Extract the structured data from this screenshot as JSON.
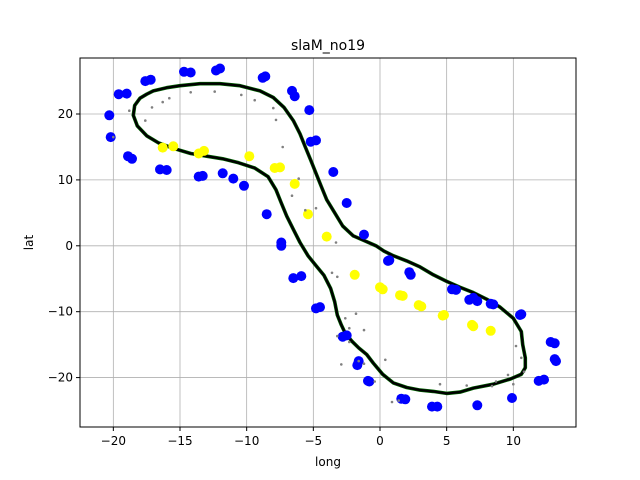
{
  "chart_data": {
    "type": "scatter",
    "title": "slaM_no19",
    "xlabel": "long",
    "ylabel": "lat",
    "xlim": [
      -22.5,
      14.7
    ],
    "ylim": [
      -27.5,
      28.5
    ],
    "xticks": [
      -20,
      -15,
      -10,
      -5,
      0,
      5,
      10
    ],
    "yticks": [
      -20,
      -10,
      0,
      10,
      20
    ],
    "grid": true,
    "legend": "none",
    "colors": {
      "blue": "#0000ff",
      "yellow": "#ffff00",
      "gray": "#808080",
      "track": "#000000",
      "track_edge": "#006400",
      "grid": "#b0b0b0"
    },
    "series": [
      {
        "color": "blue",
        "marker": "circle",
        "points": [
          [
            -20.3,
            19.8
          ],
          [
            -20.2,
            16.5
          ],
          [
            -19.6,
            23.0
          ],
          [
            -19.0,
            23.1
          ],
          [
            -18.9,
            13.6
          ],
          [
            -18.6,
            13.2
          ],
          [
            -17.6,
            25.0
          ],
          [
            -17.2,
            25.2
          ],
          [
            -16.5,
            11.6
          ],
          [
            -16.0,
            11.5
          ],
          [
            -14.7,
            26.4
          ],
          [
            -14.2,
            26.3
          ],
          [
            -13.6,
            10.5
          ],
          [
            -13.3,
            10.6
          ],
          [
            -12.3,
            26.6
          ],
          [
            -12.0,
            26.9
          ],
          [
            -11.8,
            11.0
          ],
          [
            -11.0,
            10.2
          ],
          [
            -10.2,
            9.1
          ],
          [
            -8.8,
            25.5
          ],
          [
            -8.6,
            25.7
          ],
          [
            -8.5,
            4.8
          ],
          [
            -7.4,
            0.5
          ],
          [
            -7.4,
            0.0
          ],
          [
            -6.6,
            23.5
          ],
          [
            -6.4,
            22.7
          ],
          [
            -6.5,
            -4.9
          ],
          [
            -5.9,
            -4.6
          ],
          [
            -5.3,
            20.6
          ],
          [
            -5.2,
            15.8
          ],
          [
            -4.8,
            16.0
          ],
          [
            -4.8,
            -9.5
          ],
          [
            -4.5,
            -9.3
          ],
          [
            -3.5,
            11.2
          ],
          [
            -2.8,
            -13.8
          ],
          [
            -2.5,
            -13.6
          ],
          [
            -2.5,
            6.5
          ],
          [
            -1.7,
            -18.1
          ],
          [
            -1.6,
            -17.5
          ],
          [
            -1.2,
            1.7
          ],
          [
            -0.9,
            -20.5
          ],
          [
            -0.8,
            -20.6
          ],
          [
            0.6,
            -2.3
          ],
          [
            0.7,
            -2.2
          ],
          [
            1.6,
            -23.2
          ],
          [
            1.9,
            -23.3
          ],
          [
            2.2,
            -4.0
          ],
          [
            2.3,
            -4.4
          ],
          [
            3.9,
            -24.4
          ],
          [
            4.3,
            -24.4
          ],
          [
            5.4,
            -6.6
          ],
          [
            5.7,
            -6.7
          ],
          [
            6.7,
            -8.2
          ],
          [
            7.0,
            -7.9
          ],
          [
            7.3,
            -8.4
          ],
          [
            7.3,
            -24.2
          ],
          [
            8.3,
            -8.8
          ],
          [
            8.5,
            -8.9
          ],
          [
            9.9,
            -23.1
          ],
          [
            10.5,
            -10.5
          ],
          [
            10.6,
            -10.4
          ],
          [
            11.9,
            -20.5
          ],
          [
            12.3,
            -20.3
          ],
          [
            12.8,
            -14.6
          ],
          [
            13.1,
            -14.8
          ],
          [
            13.1,
            -17.2
          ],
          [
            13.2,
            -17.5
          ]
        ]
      },
      {
        "color": "yellow",
        "marker": "circle",
        "points": [
          [
            -16.3,
            14.9
          ],
          [
            -15.5,
            15.1
          ],
          [
            -13.6,
            14.0
          ],
          [
            -13.2,
            14.4
          ],
          [
            -9.8,
            13.6
          ],
          [
            -7.9,
            11.8
          ],
          [
            -7.5,
            11.9
          ],
          [
            -6.4,
            9.4
          ],
          [
            -5.4,
            4.8
          ],
          [
            -4.0,
            1.4
          ],
          [
            -1.9,
            -4.4
          ],
          [
            0.0,
            -6.3
          ],
          [
            0.2,
            -6.6
          ],
          [
            1.5,
            -7.5
          ],
          [
            1.7,
            -7.6
          ],
          [
            2.9,
            -9.0
          ],
          [
            3.1,
            -9.2
          ],
          [
            4.7,
            -10.6
          ],
          [
            4.8,
            -10.5
          ],
          [
            6.9,
            -12.0
          ],
          [
            7.0,
            -12.2
          ],
          [
            8.3,
            -12.9
          ]
        ]
      },
      {
        "color": "gray",
        "marker": "dot",
        "points": [
          [
            -20.0,
            16.5
          ],
          [
            -18.8,
            20.5
          ],
          [
            -17.6,
            19.0
          ],
          [
            -17.1,
            21.0
          ],
          [
            -16.3,
            21.8
          ],
          [
            -15.8,
            22.4
          ],
          [
            -14.2,
            23.3
          ],
          [
            -12.4,
            23.4
          ],
          [
            -10.4,
            22.9
          ],
          [
            -9.4,
            22.1
          ],
          [
            -8.0,
            20.9
          ],
          [
            -7.8,
            19.1
          ],
          [
            -7.3,
            15.0
          ],
          [
            -6.1,
            10.2
          ],
          [
            -6.6,
            7.6
          ],
          [
            -5.6,
            5.4
          ],
          [
            -4.8,
            5.7
          ],
          [
            -3.3,
            0.5
          ],
          [
            -3.6,
            -4.1
          ],
          [
            -3.2,
            -4.7
          ],
          [
            -1.8,
            -10.3
          ],
          [
            -2.6,
            -11.0
          ],
          [
            -2.3,
            -12.5
          ],
          [
            -1.2,
            -12.8
          ],
          [
            -3.2,
            -13.7
          ],
          [
            -2.3,
            -14.6
          ],
          [
            -2.9,
            -18.0
          ],
          [
            -1.6,
            -17.5
          ],
          [
            -1.2,
            -17.9
          ],
          [
            -0.4,
            -20.6
          ],
          [
            0.4,
            -17.3
          ],
          [
            0.9,
            -23.7
          ],
          [
            1.4,
            -23.5
          ],
          [
            4.5,
            -21.0
          ],
          [
            6.5,
            -21.2
          ],
          [
            8.4,
            -21.3
          ],
          [
            8.7,
            -20.6
          ],
          [
            9.6,
            -19.6
          ],
          [
            10.2,
            -15.2
          ],
          [
            10.6,
            -17.0
          ],
          [
            10.8,
            -19.1
          ],
          [
            10.0,
            -21.0
          ]
        ]
      }
    ],
    "track": {
      "color": "track",
      "closed": true,
      "points": [
        [
          -17.5,
          23.0
        ],
        [
          -17.0,
          23.5
        ],
        [
          -16.0,
          24.0
        ],
        [
          -15.0,
          24.3
        ],
        [
          -13.5,
          24.6
        ],
        [
          -12.0,
          24.6
        ],
        [
          -10.5,
          24.3
        ],
        [
          -9.0,
          23.5
        ],
        [
          -8.0,
          22.5
        ],
        [
          -7.2,
          21.0
        ],
        [
          -6.5,
          19.0
        ],
        [
          -6.0,
          17.0
        ],
        [
          -5.6,
          15.0
        ],
        [
          -5.2,
          13.0
        ],
        [
          -4.8,
          11.0
        ],
        [
          -4.4,
          9.0
        ],
        [
          -4.0,
          7.0
        ],
        [
          -3.4,
          5.0
        ],
        [
          -2.8,
          3.0
        ],
        [
          -2.0,
          1.5
        ],
        [
          -1.2,
          0.8
        ],
        [
          -0.3,
          0.0
        ],
        [
          0.3,
          -0.8
        ],
        [
          1.0,
          -1.5
        ],
        [
          2.0,
          -2.3
        ],
        [
          3.0,
          -3.2
        ],
        [
          4.0,
          -4.4
        ],
        [
          5.0,
          -5.4
        ],
        [
          6.0,
          -6.3
        ],
        [
          7.0,
          -7.1
        ],
        [
          8.0,
          -8.1
        ],
        [
          9.0,
          -9.3
        ],
        [
          10.0,
          -11.0
        ],
        [
          10.6,
          -13.0
        ],
        [
          10.7,
          -15.0
        ],
        [
          10.9,
          -17.0
        ],
        [
          10.9,
          -18.5
        ],
        [
          10.6,
          -19.5
        ],
        [
          9.8,
          -20.2
        ],
        [
          8.5,
          -21.0
        ],
        [
          7.0,
          -21.6
        ],
        [
          6.0,
          -22.2
        ],
        [
          5.0,
          -22.4
        ],
        [
          4.0,
          -22.1
        ],
        [
          3.0,
          -21.9
        ],
        [
          2.0,
          -21.5
        ],
        [
          1.0,
          -20.8
        ],
        [
          0.2,
          -19.5
        ],
        [
          -0.5,
          -17.8
        ],
        [
          -1.0,
          -16.5
        ],
        [
          -1.6,
          -15.5
        ],
        [
          -2.1,
          -14.5
        ],
        [
          -2.6,
          -13.3
        ],
        [
          -2.9,
          -12.0
        ],
        [
          -3.2,
          -10.5
        ],
        [
          -3.4,
          -8.5
        ],
        [
          -3.7,
          -6.5
        ],
        [
          -4.2,
          -4.5
        ],
        [
          -4.8,
          -3.0
        ],
        [
          -5.4,
          -1.5
        ],
        [
          -6.0,
          0.5
        ],
        [
          -6.5,
          2.5
        ],
        [
          -7.0,
          4.5
        ],
        [
          -7.4,
          6.5
        ],
        [
          -7.8,
          8.5
        ],
        [
          -8.4,
          10.5
        ],
        [
          -9.4,
          11.8
        ],
        [
          -10.6,
          12.6
        ],
        [
          -11.8,
          13.2
        ],
        [
          -13.0,
          13.6
        ],
        [
          -14.2,
          14.0
        ],
        [
          -15.5,
          14.8
        ],
        [
          -16.6,
          15.6
        ],
        [
          -17.5,
          16.7
        ],
        [
          -18.2,
          18.2
        ],
        [
          -18.5,
          19.8
        ],
        [
          -18.4,
          21.3
        ],
        [
          -18.0,
          22.4
        ]
      ]
    }
  }
}
